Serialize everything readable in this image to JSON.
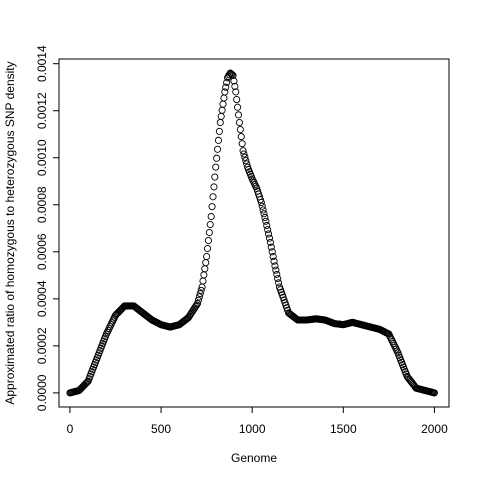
{
  "chart_data": {
    "type": "scatter",
    "title": "",
    "xlabel": "Genome",
    "ylabel": "Approximated ratio of homozygous to heterozygous SNP density",
    "xlim": [
      -60,
      2080
    ],
    "ylim": [
      -6e-05,
      0.00142
    ],
    "x_ticks": [
      0,
      500,
      1000,
      1500,
      2000
    ],
    "x_tick_labels": [
      "0",
      "500",
      "1000",
      "1500",
      "2000"
    ],
    "y_ticks": [
      0,
      0.0002,
      0.0004,
      0.0006,
      0.0008,
      0.001,
      0.0012,
      0.0014
    ],
    "y_tick_labels": [
      "0.0000",
      "0.0002",
      "0.0004",
      "0.0006",
      "0.0008",
      "0.0010",
      "0.0012",
      "0.0014"
    ],
    "marker": "open-circle",
    "grid": false,
    "series": [
      {
        "x": [
          0,
          50,
          100,
          150,
          200,
          250,
          300,
          350,
          400,
          450,
          500,
          550,
          600,
          650,
          700,
          725,
          750,
          775,
          800,
          825,
          850,
          865,
          880,
          895,
          910,
          930,
          950,
          975,
          1000,
          1025,
          1050,
          1075,
          1100,
          1125,
          1150,
          1200,
          1250,
          1300,
          1350,
          1400,
          1450,
          1500,
          1550,
          1600,
          1650,
          1700,
          1750,
          1800,
          1850,
          1900,
          1950,
          2000
        ],
        "y": [
          0.0,
          1e-05,
          5e-05,
          0.00015,
          0.00025,
          0.00033,
          0.00037,
          0.00037,
          0.00034,
          0.00031,
          0.00029,
          0.00028,
          0.00029,
          0.00032,
          0.00038,
          0.00045,
          0.00058,
          0.00075,
          0.00096,
          0.00115,
          0.00128,
          0.00134,
          0.00136,
          0.00135,
          0.00128,
          0.00115,
          0.00103,
          0.00096,
          0.00091,
          0.00087,
          0.00081,
          0.00073,
          0.00064,
          0.00054,
          0.00045,
          0.00034,
          0.00031,
          0.00031,
          0.000315,
          0.00031,
          0.000295,
          0.00029,
          0.0003,
          0.00029,
          0.00028,
          0.00027,
          0.00025,
          0.00017,
          7e-05,
          2e-05,
          1e-05,
          0.0
        ]
      }
    ]
  }
}
